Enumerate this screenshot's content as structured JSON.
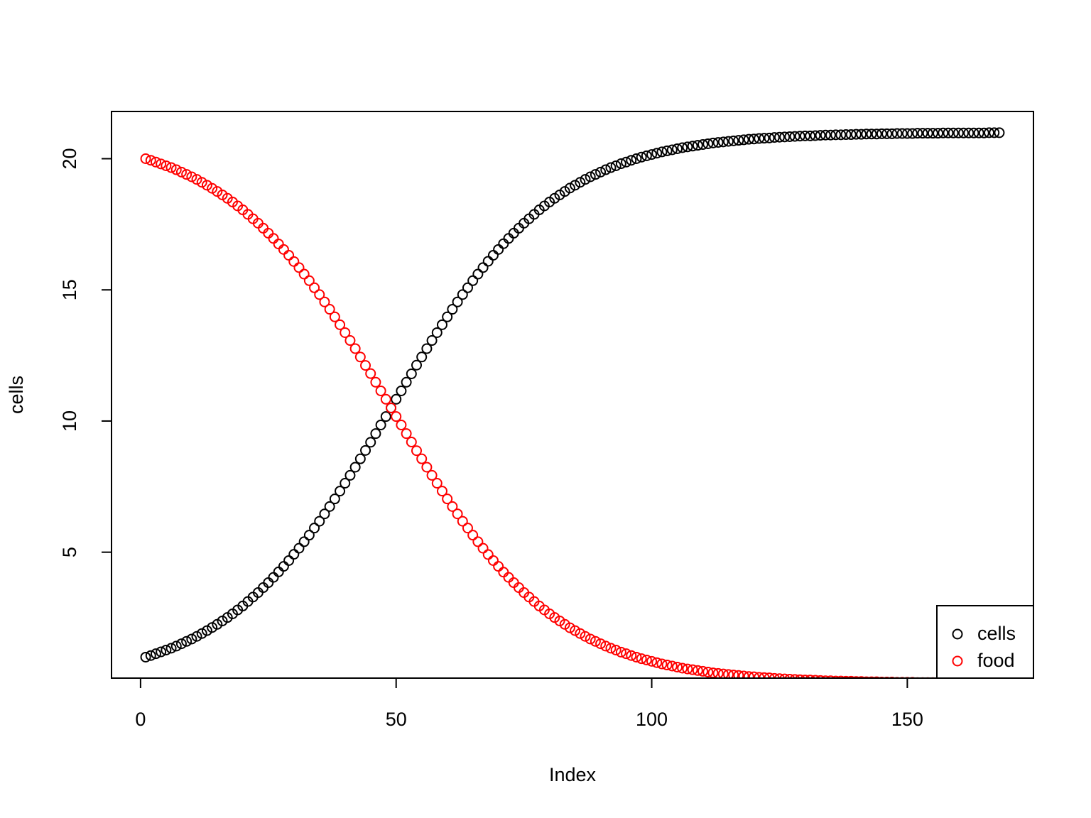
{
  "chart_data": {
    "type": "scatter",
    "x_label": "Index",
    "y_label": "cells",
    "x": [
      1,
      2,
      3,
      4,
      5,
      6,
      7,
      8,
      9,
      10,
      11,
      12,
      13,
      14,
      15,
      16,
      17,
      18,
      19,
      20,
      21,
      22,
      23,
      24,
      25,
      26,
      27,
      28,
      29,
      30,
      31,
      32,
      33,
      34,
      35,
      36,
      37,
      38,
      39,
      40,
      41,
      42,
      43,
      44,
      45,
      46,
      47,
      48,
      49,
      50,
      51,
      52,
      53,
      54,
      55,
      56,
      57,
      58,
      59,
      60,
      61,
      62,
      63,
      64,
      65,
      66,
      67,
      68,
      69,
      70,
      71,
      72,
      73,
      74,
      75,
      76,
      77,
      78,
      79,
      80,
      81,
      82,
      83,
      84,
      85,
      86,
      87,
      88,
      89,
      90,
      91,
      92,
      93,
      94,
      95,
      96,
      97,
      98,
      99,
      100,
      101,
      102,
      103,
      104,
      105,
      106,
      107,
      108,
      109,
      110,
      111,
      112,
      113,
      114,
      115,
      116,
      117,
      118,
      119,
      120,
      121,
      122,
      123,
      124,
      125,
      126,
      127,
      128,
      129,
      130,
      131,
      132,
      133,
      134,
      135,
      136,
      137,
      138,
      139,
      140,
      141,
      142,
      143,
      144,
      145,
      146,
      147,
      148,
      149,
      150,
      151,
      152,
      153,
      154,
      155,
      156,
      157,
      158,
      159,
      160,
      161,
      162,
      163,
      164,
      165,
      166,
      167,
      168
    ],
    "series": [
      {
        "name": "cells",
        "color": "#000000",
        "values": [
          1.0,
          1.06,
          1.13,
          1.2,
          1.27,
          1.34,
          1.42,
          1.51,
          1.6,
          1.69,
          1.79,
          1.9,
          2.01,
          2.13,
          2.25,
          2.38,
          2.51,
          2.65,
          2.8,
          2.95,
          3.12,
          3.29,
          3.46,
          3.65,
          3.84,
          4.04,
          4.25,
          4.46,
          4.68,
          4.92,
          5.15,
          5.4,
          5.65,
          5.92,
          6.18,
          6.46,
          6.74,
          7.03,
          7.33,
          7.63,
          7.93,
          8.24,
          8.56,
          8.88,
          9.19,
          9.52,
          9.85,
          10.17,
          10.5,
          10.83,
          11.15,
          11.48,
          11.8,
          12.13,
          12.44,
          12.76,
          13.07,
          13.37,
          13.67,
          13.97,
          14.26,
          14.54,
          14.82,
          15.08,
          15.35,
          15.6,
          15.85,
          16.09,
          16.32,
          16.54,
          16.76,
          16.96,
          17.16,
          17.35,
          17.54,
          17.71,
          17.88,
          18.05,
          18.2,
          18.35,
          18.49,
          18.62,
          18.75,
          18.88,
          18.99,
          19.1,
          19.21,
          19.31,
          19.4,
          19.49,
          19.58,
          19.66,
          19.73,
          19.81,
          19.87,
          19.94,
          20.0,
          20.06,
          20.11,
          20.16,
          20.21,
          20.26,
          20.3,
          20.34,
          20.38,
          20.42,
          20.45,
          20.48,
          20.51,
          20.54,
          20.57,
          20.6,
          20.62,
          20.64,
          20.66,
          20.68,
          20.7,
          20.72,
          20.74,
          20.75,
          20.77,
          20.78,
          20.79,
          20.81,
          20.82,
          20.83,
          20.84,
          20.85,
          20.86,
          20.87,
          20.87,
          20.88,
          20.89,
          20.9,
          20.9,
          20.91,
          20.91,
          20.92,
          20.92,
          20.93,
          20.93,
          20.94,
          20.94,
          20.94,
          20.95,
          20.95,
          20.95,
          20.96,
          20.96,
          20.96,
          20.96,
          20.97,
          20.97,
          20.97,
          20.97,
          20.97,
          20.98,
          20.98,
          20.98,
          20.98,
          20.98,
          20.98,
          20.98,
          20.98,
          20.98,
          20.99,
          20.99,
          20.99
        ]
      },
      {
        "name": "food",
        "color": "#ff0000",
        "values": [
          20.0,
          19.94,
          19.87,
          19.8,
          19.73,
          19.66,
          19.58,
          19.49,
          19.4,
          19.31,
          19.21,
          19.1,
          18.99,
          18.87,
          18.75,
          18.62,
          18.49,
          18.35,
          18.2,
          18.05,
          17.88,
          17.71,
          17.54,
          17.35,
          17.16,
          16.96,
          16.75,
          16.54,
          16.32,
          16.08,
          15.85,
          15.6,
          15.35,
          15.08,
          14.82,
          14.54,
          14.26,
          13.97,
          13.67,
          13.37,
          13.07,
          12.76,
          12.44,
          12.12,
          11.81,
          11.48,
          11.15,
          10.83,
          10.5,
          10.17,
          9.85,
          9.52,
          9.2,
          8.87,
          8.56,
          8.24,
          7.93,
          7.63,
          7.33,
          7.03,
          6.74,
          6.46,
          6.18,
          5.92,
          5.65,
          5.4,
          5.15,
          4.91,
          4.68,
          4.46,
          4.24,
          4.04,
          3.84,
          3.65,
          3.46,
          3.29,
          3.12,
          2.95,
          2.8,
          2.65,
          2.51,
          2.38,
          2.25,
          2.12,
          2.01,
          1.9,
          1.79,
          1.69,
          1.6,
          1.51,
          1.42,
          1.34,
          1.27,
          1.19,
          1.13,
          1.06,
          1.0,
          0.94,
          0.89,
          0.84,
          0.79,
          0.74,
          0.7,
          0.66,
          0.62,
          0.58,
          0.55,
          0.52,
          0.49,
          0.46,
          0.43,
          0.4,
          0.38,
          0.36,
          0.34,
          0.32,
          0.3,
          0.28,
          0.26,
          0.25,
          0.23,
          0.22,
          0.21,
          0.19,
          0.18,
          0.17,
          0.16,
          0.15,
          0.14,
          0.13,
          0.13,
          0.12,
          0.11,
          0.1,
          0.1,
          0.09,
          0.09,
          0.08,
          0.08,
          0.07,
          0.07,
          0.06,
          0.06,
          0.06,
          0.05,
          0.05,
          0.05,
          0.04,
          0.04,
          0.04,
          0.04,
          0.03,
          0.03,
          0.03,
          0.03,
          0.03,
          0.02,
          0.02,
          0.02,
          0.02,
          0.02,
          0.02,
          0.02,
          0.02,
          0.02,
          0.01,
          0.01,
          0.01
        ]
      }
    ],
    "xlim": [
      -5.68,
      174.68
    ],
    "ylim": [
      0.2,
      21.8
    ],
    "xticks": [
      0,
      50,
      100,
      150
    ],
    "yticks": [
      5,
      10,
      15,
      20
    ],
    "legend": "bottomright"
  }
}
